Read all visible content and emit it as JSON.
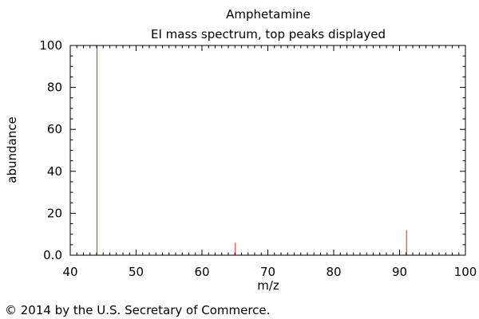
{
  "chart_data": {
    "type": "bar",
    "title": "Amphetamine",
    "subtitle": "EI mass spectrum, top peaks displayed",
    "xlabel": "m/z",
    "ylabel": "abundance",
    "xlim": [
      40,
      100
    ],
    "ylim": [
      0,
      100
    ],
    "x_ticks": [
      "40",
      "50",
      "60",
      "70",
      "80",
      "90",
      "100"
    ],
    "y_ticks": [
      "0.0",
      "20",
      "40",
      "60",
      "80",
      "100"
    ],
    "grid": false,
    "peaks": [
      {
        "x": 44,
        "y": 100
      },
      {
        "x": 65,
        "y": 6
      },
      {
        "x": 91,
        "y": 12
      }
    ],
    "peak_color": "#e8443a",
    "axis_color": "#000000"
  },
  "footer": {
    "copyright": "© 2014 by the U.S. Secretary of Commerce."
  }
}
